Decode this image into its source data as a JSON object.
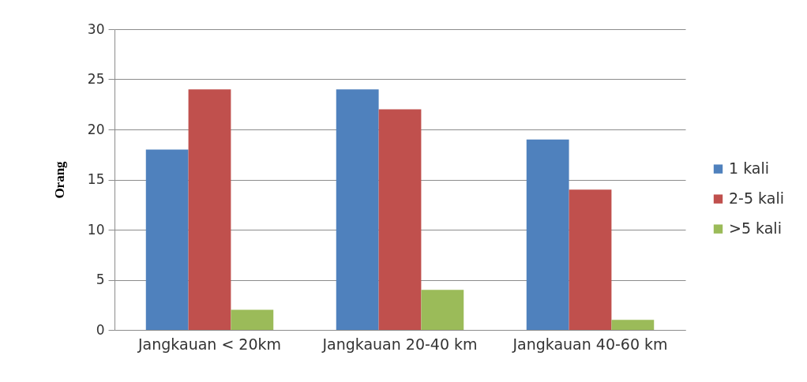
{
  "chart_data": {
    "type": "bar",
    "categories": [
      "Jangkauan < 20km",
      "Jangkauan 20-40 km",
      "Jangkauan 40-60 km"
    ],
    "series": [
      {
        "name": "1 kali",
        "color": "#4f81bd",
        "values": [
          18,
          24,
          19
        ]
      },
      {
        "name": "2-5 kali",
        "color": "#c0504d",
        "values": [
          24,
          22,
          14
        ]
      },
      {
        "name": ">5 kali",
        "color": "#9bbb59",
        "values": [
          2,
          4,
          1
        ]
      }
    ],
    "ylabel": "Orang",
    "ylim": [
      0,
      30
    ],
    "yticks": [
      0,
      5,
      10,
      15,
      20,
      25,
      30
    ],
    "grid": "y",
    "legend": "right"
  }
}
